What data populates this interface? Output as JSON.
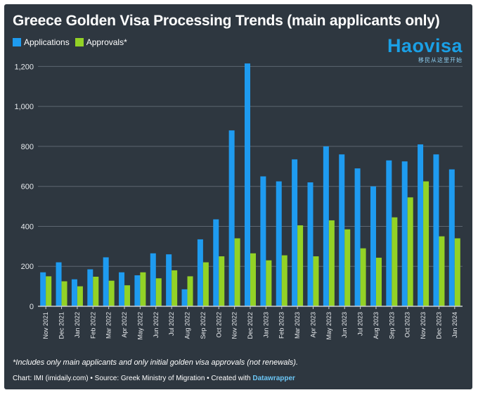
{
  "title": "Greece Golden Visa Processing Trends (main applicants only)",
  "logo": {
    "word": "Haovisa",
    "tagline": "移民从这里开始"
  },
  "footnote": "*Includes only main applicants and only initial golden visa approvals (not renewals).",
  "credit": {
    "text": "Chart: IMI (imidaily.com) • Source: Greek Ministry of Migration • Created with",
    "link": "Datawrapper"
  },
  "colors": {
    "applications": "#1e9bf0",
    "approvals": "#93d226",
    "background": "#2e3740",
    "grid": "#5d6771"
  },
  "chart_data": {
    "type": "bar",
    "title": "Greece Golden Visa Processing Trends (main applicants only)",
    "xlabel": "",
    "ylabel": "",
    "ylim": [
      0,
      1300
    ],
    "yticks": [
      0,
      200,
      400,
      600,
      800,
      1000,
      1200
    ],
    "ytick_labels": [
      "0",
      "200",
      "400",
      "600",
      "800",
      "1,000",
      "1,200"
    ],
    "grid": true,
    "legend_position": "top-left",
    "categories": [
      "Nov 2021",
      "Dec 2021",
      "Jan 2022",
      "Feb 2022",
      "Mar 2022",
      "Apr 2022",
      "May 2022",
      "Jun 2022",
      "Jul 2022",
      "Aug 2022",
      "Sep 2022",
      "Oct 2022",
      "Nov 2022",
      "Dec 2022",
      "Jan 2023",
      "Feb 2023",
      "Mar 2023",
      "Apr 2023",
      "May 2023",
      "Jun 2023",
      "Jul 2023",
      "Aug 2023",
      "Sep 2023",
      "Oct 2023",
      "Nov 2023",
      "Dec 2023",
      "Jan 2024"
    ],
    "series": [
      {
        "name": "Applications",
        "values": [
          170,
          220,
          135,
          185,
          245,
          170,
          155,
          265,
          260,
          85,
          335,
          435,
          880,
          1215,
          650,
          625,
          735,
          620,
          800,
          760,
          690,
          600,
          730,
          725,
          810,
          760,
          685
        ]
      },
      {
        "name": "Approvals*",
        "values": [
          150,
          125,
          100,
          148,
          128,
          105,
          170,
          140,
          180,
          150,
          220,
          250,
          340,
          265,
          230,
          255,
          405,
          250,
          430,
          385,
          290,
          243,
          445,
          545,
          625,
          350,
          340
        ]
      }
    ]
  }
}
